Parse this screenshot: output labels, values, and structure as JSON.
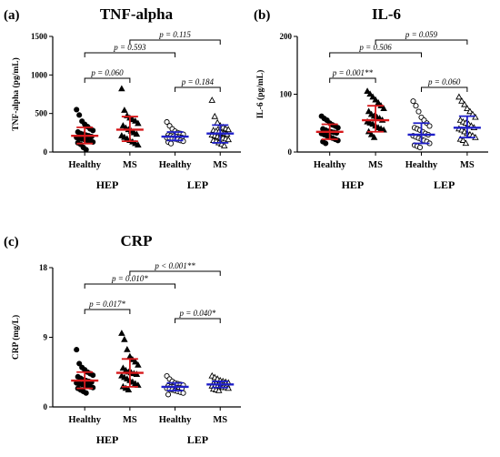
{
  "colors": {
    "hep": "#d7191c",
    "lep": "#1f1fc8",
    "point": "#000000"
  },
  "chart_data": [
    {
      "type": "scatter",
      "panel_label": "(a)",
      "title": "TNF-alpha",
      "ylabel": "TNF-alpha (pg/mL)",
      "ylim": [
        0,
        1500
      ],
      "yticks": [
        0,
        500,
        1000,
        1500
      ],
      "categories": [
        "Healthy",
        "MS",
        "Healthy",
        "MS"
      ],
      "groups": [
        {
          "label": "HEP",
          "categories": [
            0,
            1
          ]
        },
        {
          "label": "LEP",
          "categories": [
            2,
            3
          ]
        }
      ],
      "series": [
        {
          "category": "Healthy",
          "group": "HEP",
          "marker": "filled-circle",
          "summary": {
            "center": 210,
            "low": 110,
            "high": 320
          },
          "values": [
            550,
            480,
            400,
            360,
            330,
            300,
            280,
            260,
            240,
            230,
            220,
            210,
            200,
            190,
            180,
            170,
            160,
            150,
            140,
            130,
            120,
            100,
            60,
            30
          ]
        },
        {
          "category": "MS",
          "group": "HEP",
          "marker": "filled-triangle",
          "summary": {
            "center": 290,
            "low": 140,
            "high": 460
          },
          "values": [
            820,
            540,
            470,
            440,
            420,
            400,
            370,
            340,
            310,
            290,
            270,
            250,
            230,
            210,
            190,
            170,
            150,
            130,
            110,
            90
          ]
        },
        {
          "category": "Healthy",
          "group": "LEP",
          "marker": "open-circle",
          "summary": {
            "center": 200,
            "low": 150,
            "high": 260
          },
          "values": [
            390,
            340,
            300,
            270,
            250,
            240,
            230,
            220,
            210,
            205,
            200,
            195,
            190,
            185,
            180,
            175,
            170,
            160,
            150,
            140,
            130,
            110
          ]
        },
        {
          "category": "MS",
          "group": "LEP",
          "marker": "open-triangle",
          "summary": {
            "center": 240,
            "low": 120,
            "high": 350
          },
          "values": [
            670,
            460,
            380,
            340,
            320,
            300,
            290,
            280,
            270,
            260,
            250,
            240,
            230,
            220,
            210,
            200,
            190,
            180,
            170,
            160,
            150,
            140,
            120,
            100,
            80
          ]
        }
      ],
      "comparisons": [
        {
          "from": 0,
          "to": 1,
          "label": "p = 0.060"
        },
        {
          "from": 0,
          "to": 2,
          "label": "p = 0.593"
        },
        {
          "from": 1,
          "to": 3,
          "label": "p = 0.115"
        },
        {
          "from": 2,
          "to": 3,
          "label": "p = 0.184"
        }
      ]
    },
    {
      "type": "scatter",
      "panel_label": "(b)",
      "title": "IL-6",
      "ylabel": "IL-6 (pg/mL)",
      "ylim": [
        0,
        200
      ],
      "yticks": [
        0,
        100,
        200
      ],
      "categories": [
        "Healthy",
        "MS",
        "Healthy",
        "MS"
      ],
      "groups": [
        {
          "label": "HEP",
          "categories": [
            0,
            1
          ]
        },
        {
          "label": "LEP",
          "categories": [
            2,
            3
          ]
        }
      ],
      "series": [
        {
          "category": "Healthy",
          "group": "HEP",
          "marker": "filled-circle",
          "summary": {
            "center": 35,
            "low": 22,
            "high": 48
          },
          "values": [
            62,
            58,
            55,
            50,
            47,
            45,
            42,
            40,
            38,
            36,
            35,
            34,
            33,
            32,
            30,
            28,
            26,
            24,
            22,
            20,
            18,
            15
          ]
        },
        {
          "category": "MS",
          "group": "HEP",
          "marker": "filled-triangle",
          "summary": {
            "center": 55,
            "low": 35,
            "high": 80
          },
          "values": [
            105,
            100,
            95,
            90,
            85,
            80,
            75,
            70,
            65,
            62,
            60,
            58,
            55,
            52,
            50,
            48,
            45,
            42,
            40,
            38,
            35,
            30,
            25
          ]
        },
        {
          "category": "Healthy",
          "group": "LEP",
          "marker": "open-circle",
          "summary": {
            "center": 30,
            "low": 15,
            "high": 50
          },
          "values": [
            88,
            80,
            70,
            60,
            55,
            50,
            45,
            42,
            40,
            38,
            35,
            32,
            30,
            28,
            26,
            24,
            22,
            20,
            18,
            15,
            12,
            10,
            8
          ]
        },
        {
          "category": "MS",
          "group": "LEP",
          "marker": "open-triangle",
          "summary": {
            "center": 42,
            "low": 25,
            "high": 62
          },
          "values": [
            95,
            88,
            82,
            75,
            70,
            65,
            60,
            55,
            52,
            50,
            48,
            45,
            42,
            40,
            38,
            35,
            32,
            30,
            28,
            25,
            22,
            20,
            15
          ]
        }
      ],
      "comparisons": [
        {
          "from": 0,
          "to": 1,
          "label": "p = 0.001**"
        },
        {
          "from": 0,
          "to": 2,
          "label": "p = 0.506"
        },
        {
          "from": 1,
          "to": 3,
          "label": "p = 0.059"
        },
        {
          "from": 2,
          "to": 3,
          "label": "p = 0.060"
        }
      ]
    },
    {
      "type": "scatter",
      "panel_label": "(c)",
      "title": "CRP",
      "ylabel": "CRP (mg/L)",
      "ylim": [
        0,
        18
      ],
      "yticks": [
        0,
        9,
        18
      ],
      "categories": [
        "Healthy",
        "MS",
        "Healthy",
        "MS"
      ],
      "groups": [
        {
          "label": "HEP",
          "categories": [
            0,
            1
          ]
        },
        {
          "label": "LEP",
          "categories": [
            2,
            3
          ]
        }
      ],
      "series": [
        {
          "category": "Healthy",
          "group": "HEP",
          "marker": "filled-circle",
          "summary": {
            "center": 3.4,
            "low": 2.4,
            "high": 4.5
          },
          "values": [
            7.4,
            5.6,
            5.1,
            4.8,
            4.5,
            4.3,
            4.1,
            3.9,
            3.7,
            3.5,
            3.4,
            3.3,
            3.2,
            3.1,
            3.0,
            2.9,
            2.8,
            2.7,
            2.6,
            2.5,
            2.4,
            2.2,
            2.0,
            1.8
          ]
        },
        {
          "category": "MS",
          "group": "HEP",
          "marker": "filled-triangle",
          "summary": {
            "center": 4.4,
            "low": 2.6,
            "high": 6.2
          },
          "values": [
            9.5,
            8.7,
            7.4,
            6.5,
            6.1,
            5.8,
            5.4,
            5.0,
            4.7,
            4.5,
            4.4,
            4.3,
            4.2,
            4.0,
            3.8,
            3.6,
            3.4,
            3.2,
            3.0,
            2.8,
            2.6,
            2.4,
            2.2
          ]
        },
        {
          "category": "Healthy",
          "group": "LEP",
          "marker": "open-circle",
          "summary": {
            "center": 2.6,
            "low": 2.1,
            "high": 3.1
          },
          "values": [
            4.0,
            3.6,
            3.3,
            3.1,
            3.0,
            2.9,
            2.8,
            2.7,
            2.6,
            2.6,
            2.5,
            2.5,
            2.4,
            2.4,
            2.3,
            2.2,
            2.1,
            2.0,
            1.9,
            1.8,
            1.6
          ]
        },
        {
          "category": "MS",
          "group": "LEP",
          "marker": "open-triangle",
          "summary": {
            "center": 2.9,
            "low": 2.5,
            "high": 3.3
          },
          "values": [
            4.0,
            3.8,
            3.6,
            3.4,
            3.3,
            3.2,
            3.1,
            3.0,
            3.0,
            2.9,
            2.9,
            2.8,
            2.8,
            2.7,
            2.7,
            2.6,
            2.6,
            2.5,
            2.5,
            2.4,
            2.3,
            2.2,
            2.1
          ]
        }
      ],
      "comparisons": [
        {
          "from": 0,
          "to": 1,
          "label": "p = 0.017*"
        },
        {
          "from": 0,
          "to": 2,
          "label": "p = 0.010*"
        },
        {
          "from": 1,
          "to": 3,
          "label": "p < 0.001**"
        },
        {
          "from": 2,
          "to": 3,
          "label": "p = 0.040*"
        }
      ]
    }
  ]
}
